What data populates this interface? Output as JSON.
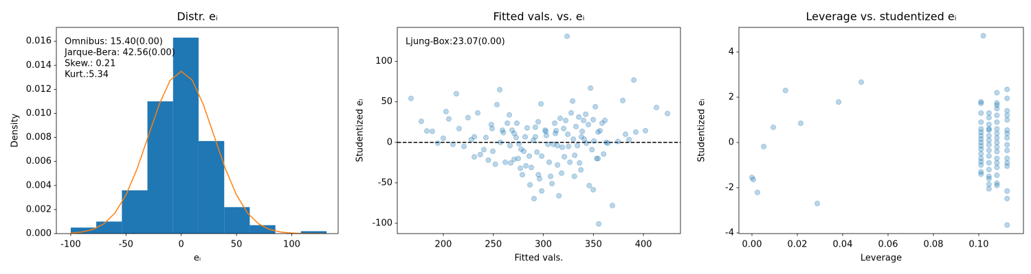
{
  "chart_data": [
    {
      "type": "histogram",
      "title": "Distr. eᵢ",
      "xlabel": "eᵢ",
      "ylabel": "Density",
      "annotation": [
        "Omnibus: 15.40(0.00)",
        "Jarque-Bera: 42.56(0.00)",
        "Skew.: 0.21",
        "Kurt.:5.34"
      ],
      "bins": [
        -100,
        -76.9,
        -53.7,
        -30.6,
        -7.4,
        15.7,
        38.9,
        62.0,
        85.2,
        108.3,
        131.5
      ],
      "values": [
        0.0005,
        0.001,
        0.0036,
        0.011,
        0.0163,
        0.0077,
        0.0022,
        0.0007,
        0,
        0.0002
      ],
      "color": "#1f77b4",
      "curve": {
        "color": "#ff7f0e",
        "x": [
          -100,
          -90,
          -80,
          -70,
          -60,
          -50,
          -40,
          -30,
          -20,
          -10,
          0,
          10,
          20,
          30,
          40,
          50,
          60,
          70,
          80,
          90,
          100,
          110,
          120,
          130
        ],
        "values": [
          4e-05,
          0.00013,
          0.00034,
          0.00081,
          0.00171,
          0.00321,
          0.00538,
          0.00805,
          0.01073,
          0.01275,
          0.0135,
          0.01275,
          0.01073,
          0.00805,
          0.00538,
          0.00321,
          0.00171,
          0.00081,
          0.00034,
          0.00013,
          4e-05,
          1e-05,
          0,
          0
        ]
      },
      "xlim": [
        -113,
        142
      ],
      "ylim": [
        0,
        0.01715
      ],
      "xticks": [
        -100,
        -50,
        0,
        50,
        100
      ],
      "yticks": [
        {
          "value": 0,
          "label": "0.000"
        },
        {
          "value": 0.002,
          "label": "0.002"
        },
        {
          "value": 0.004,
          "label": "0.004"
        },
        {
          "value": 0.006,
          "label": "0.006"
        },
        {
          "value": 0.008,
          "label": "0.008"
        },
        {
          "value": 0.01,
          "label": "0.010"
        },
        {
          "value": 0.012,
          "label": "0.012"
        },
        {
          "value": 0.014,
          "label": "0.014"
        },
        {
          "value": 0.016,
          "label": "0.016"
        }
      ]
    },
    {
      "type": "scatter",
      "title": "Fitted vals. vs. eᵢ",
      "xlabel": "Fitted vals.",
      "ylabel": "Studentized eᵢ",
      "annotation": [
        "Ljung-Box:23.07(0.00)"
      ],
      "color": "#1f77b4",
      "hline": 0,
      "x": [
        167.7,
        178,
        183.5,
        189,
        194.5,
        200,
        202.7,
        205.5,
        213,
        209.6,
        215.8,
        220.6,
        224.7,
        234.4,
        228,
        231,
        231,
        237,
        240.5,
        242.6,
        245,
        248,
        248.8,
        249.5,
        252,
        253.6,
        256.4,
        257,
        259,
        260,
        261.9,
        264,
        266,
        266.7,
        267.4,
        268.7,
        270.8,
        270.8,
        272.8,
        273.5,
        275.6,
        277,
        277.7,
        280.4,
        281.8,
        283.8,
        285.9,
        286.6,
        288,
        290,
        290.7,
        292,
        293.5,
        294.8,
        296.2,
        297.6,
        298.3,
        298.3,
        301.7,
        303,
        304.5,
        305.8,
        307.2,
        308.6,
        310,
        311.3,
        312,
        312.7,
        314.1,
        315.5,
        316.8,
        318.2,
        318.9,
        320.3,
        321,
        322.3,
        323.7,
        324.4,
        325.1,
        326.5,
        327.8,
        329.2,
        329.9,
        331.3,
        332.6,
        334,
        335.4,
        336.1,
        337.5,
        338.8,
        340.2,
        340.9,
        342.3,
        343,
        345,
        345.8,
        347.1,
        348.5,
        349.8,
        350.5,
        351.9,
        353.3,
        354.6,
        355.3,
        356.7,
        358.7,
        360.2,
        362.9,
        364.3,
        369,
        374.6,
        379.4,
        382.1,
        385.6,
        390.4,
        392.4,
        402,
        413,
        424,
        361.5,
        349.8,
        292,
        295,
        279,
        274.9,
        302.4,
        314.1,
        331,
        338,
        354.6,
        282.5
      ],
      "values": [
        54.2,
        26,
        14,
        13.6,
        -1,
        5,
        38,
        29,
        60,
        -2.5,
        17,
        -5,
        30.5,
        36.4,
        3.4,
        6.8,
        -18,
        -15,
        -9,
        6,
        -22,
        22,
        17,
        -11,
        -27,
        46.6,
        65,
        0,
        15,
        12,
        -24.6,
        23.7,
        33.9,
        -4,
        -25.4,
        15,
        11,
        -21,
        6,
        23.7,
        -1.7,
        -32,
        -8.5,
        -11,
        6.8,
        17.8,
        -17,
        -52.5,
        -31,
        2.5,
        -69.5,
        18.6,
        -12,
        25.4,
        -45,
        47.5,
        -17,
        -60,
        15,
        8.5,
        -2.5,
        -24.6,
        -42,
        -51,
        -2.5,
        23.7,
        11,
        14.4,
        -28,
        -66,
        29.7,
        -38,
        -6,
        17,
        -17.8,
        27,
        131,
        10,
        -5,
        -24.6,
        36.4,
        51,
        4,
        -16,
        19.5,
        -4,
        31.3,
        -25.4,
        -34,
        13.6,
        27,
        4,
        34.7,
        -1,
        22,
        -53.4,
        67,
        -9,
        -58.5,
        1.7,
        44,
        -20,
        12.7,
        -100.8,
        14.4,
        23.7,
        -14.4,
        0,
        -1,
        -78,
        1,
        51.7,
        10,
        3.4,
        77,
        12.7,
        14.4,
        43,
        35.6,
        27,
        28,
        6.8,
        -40,
        -40,
        -20,
        13.6,
        -4,
        -42,
        6.8,
        -20,
        -29
      ],
      "xlim": [
        154,
        437
      ],
      "ylim": [
        -112.7,
        142
      ],
      "xticks": [
        200,
        250,
        300,
        350,
        400
      ],
      "yticks": [
        -100,
        -50,
        0,
        50,
        100
      ]
    },
    {
      "type": "scatter",
      "title": "Leverage vs. studentized eᵢ",
      "xlabel": "Leverage",
      "ylabel": "Studentized eᵢ",
      "color": "#1f77b4",
      "x": [
        0.0,
        0.0006,
        0.0024,
        0.0052,
        0.0094,
        0.0148,
        0.0215,
        0.0288,
        0.0382,
        0.0482,
        0.101,
        0.101,
        0.101,
        0.101,
        0.101,
        0.101,
        0.101,
        0.101,
        0.101,
        0.101,
        0.101,
        0.101,
        0.101,
        0.101,
        0.101,
        0.101,
        0.101,
        0.102,
        0.1045,
        0.1045,
        0.1045,
        0.1045,
        0.1045,
        0.1045,
        0.1045,
        0.1045,
        0.1045,
        0.1045,
        0.1045,
        0.1045,
        0.1045,
        0.1045,
        0.1045,
        0.1045,
        0.108,
        0.108,
        0.108,
        0.108,
        0.108,
        0.108,
        0.108,
        0.108,
        0.108,
        0.108,
        0.108,
        0.108,
        0.108,
        0.108,
        0.108,
        0.108,
        0.108,
        0.108,
        0.1125,
        0.1125,
        0.1125,
        0.1125,
        0.1125,
        0.1125,
        0.1125,
        0.1125,
        0.1125,
        0.1125,
        0.1125,
        0.1125,
        0.1125,
        0.1125,
        0.1125,
        0.1125
      ],
      "values": [
        -1.55,
        -1.64,
        -2.21,
        -0.18,
        0.67,
        2.3,
        0.85,
        -2.7,
        1.79,
        2.67,
        1.73,
        1.8,
        0.6,
        0.45,
        0.3,
        0.15,
        0,
        -0.15,
        -0.3,
        -0.5,
        -0.7,
        -0.85,
        -1,
        -1.4,
        0.9,
        1.3,
        -1.3,
        4.72,
        1.3,
        1.1,
        0.8,
        0.55,
        0.3,
        0.1,
        -0.1,
        -0.35,
        -0.6,
        -0.9,
        -1.2,
        -1.5,
        -1.85,
        -2.05,
        -1.6,
        0.6,
        2.2,
        1.65,
        1.5,
        1.2,
        0.9,
        0.6,
        0.4,
        0.2,
        0,
        -0.2,
        -0.4,
        -0.7,
        -0.9,
        -1.1,
        -1.45,
        -1.8,
        -1.9,
        1.75,
        2.35,
        1.95,
        1.4,
        1.2,
        1,
        0.55,
        0.4,
        0.2,
        -0.1,
        -0.35,
        -0.7,
        -0.9,
        -1.05,
        -2.15,
        -2.48,
        -3.65
      ],
      "xlim": [
        -0.00576,
        0.1197
      ],
      "ylim": [
        -4.03,
        5.09
      ],
      "xticks": [
        {
          "value": 0,
          "label": "0.00"
        },
        {
          "value": 0.02,
          "label": "0.02"
        },
        {
          "value": 0.04,
          "label": "0.04"
        },
        {
          "value": 0.06,
          "label": "0.06"
        },
        {
          "value": 0.08,
          "label": "0.08"
        },
        {
          "value": 0.1,
          "label": "0.10"
        }
      ],
      "yticks": [
        -4,
        -2,
        0,
        2,
        4
      ]
    }
  ]
}
